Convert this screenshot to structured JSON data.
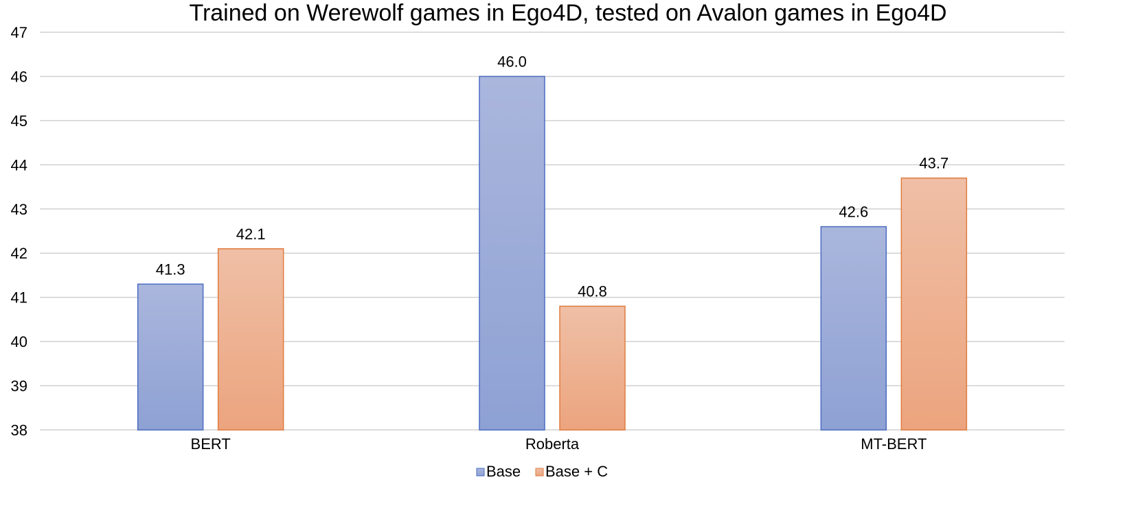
{
  "chart_data": {
    "type": "bar",
    "title": "Trained on Werewolf games in Ego4D, tested on Avalon games in Ego4D",
    "xlabel": "",
    "ylabel": "",
    "categories": [
      "BERT",
      "Roberta",
      "MT-BERT"
    ],
    "series": [
      {
        "name": "Base",
        "values": [
          41.3,
          46.0,
          42.6
        ],
        "labels": [
          "41.3",
          "46.0",
          "42.6"
        ],
        "color_top": "#aab6dc",
        "color_bottom": "#8ea1d4",
        "stroke": "#4a6cc2"
      },
      {
        "name": "Base + C",
        "values": [
          42.1,
          40.8,
          43.7
        ],
        "labels": [
          "42.1",
          "40.8",
          "43.7"
        ],
        "color_top": "#efbfa6",
        "color_bottom": "#eca47e",
        "stroke": "#e07b3f"
      }
    ],
    "ylim": [
      38,
      47
    ],
    "yticks": [
      38,
      39,
      40,
      41,
      42,
      43,
      44,
      45,
      46,
      47
    ],
    "grid": true,
    "legend_position": "bottom"
  }
}
